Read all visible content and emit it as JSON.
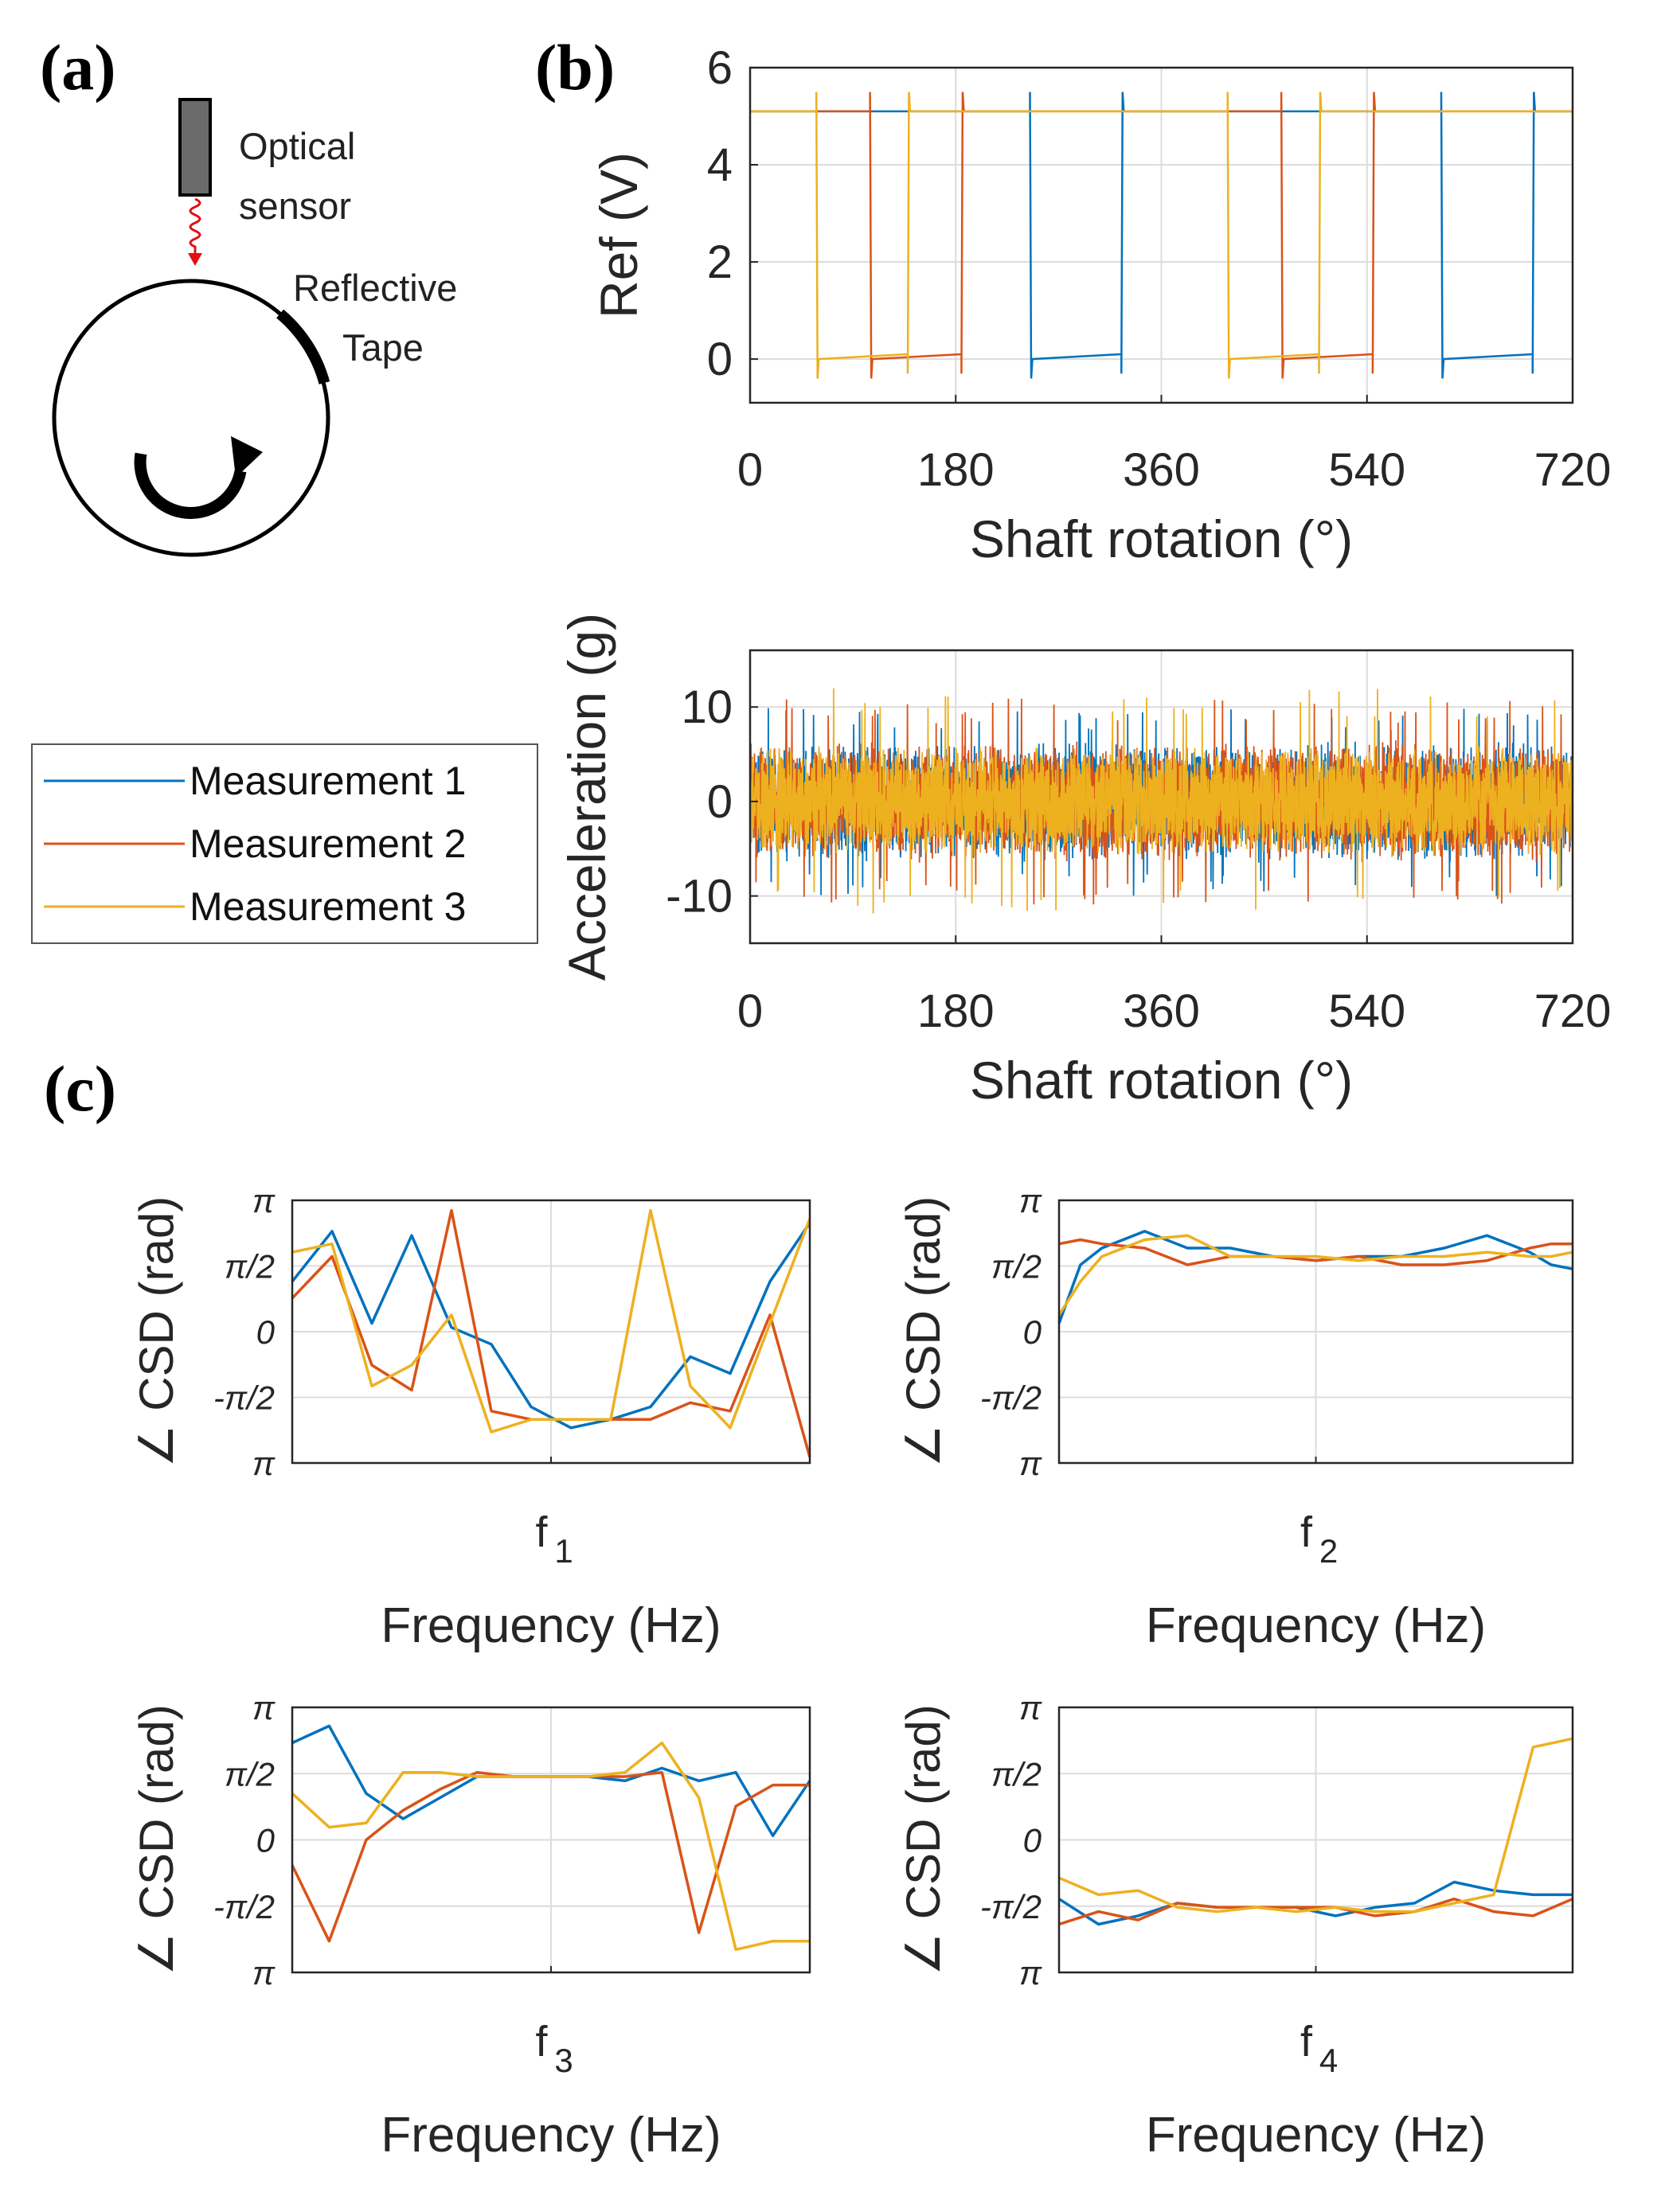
{
  "panels": {
    "a": "(a)",
    "b": "(b)",
    "c": "(c)"
  },
  "schematic": {
    "sensor_label_line1": "Optical",
    "sensor_label_line2": "sensor",
    "tape_label_line1": "Reflective",
    "tape_label_line2": "Tape"
  },
  "colors": {
    "measurement_1": "#0072BD",
    "measurement_2": "#D95319",
    "measurement_3": "#EDB120",
    "sensor_body": "#6b6b6b",
    "beam": "#e01010"
  },
  "legend": {
    "entries": [
      "Measurement 1",
      "Measurement 2",
      "Measurement 3"
    ]
  },
  "chart_data": [
    {
      "id": "ref",
      "type": "line",
      "xlabel": "Shaft rotation (°)",
      "ylabel": "Ref (V)",
      "xlim": [
        0,
        720
      ],
      "ylim": [
        -0.9,
        6
      ],
      "xticks": [
        0,
        180,
        360,
        540,
        720
      ],
      "yticks": [
        0,
        2,
        4,
        6
      ],
      "grid": true,
      "high_level": 5.1,
      "low_level": 0.0,
      "series": [
        {
          "name": "Measurement 1",
          "low_intervals": [
            [
              245,
              325
            ],
            [
              605,
              685
            ]
          ]
        },
        {
          "name": "Measurement 2",
          "low_intervals": [
            [
              105,
              185
            ],
            [
              465,
              545
            ]
          ]
        },
        {
          "name": "Measurement 3",
          "low_intervals": [
            [
              58,
              138
            ],
            [
              418,
              498
            ]
          ]
        }
      ]
    },
    {
      "id": "accel",
      "type": "line",
      "xlabel": "Shaft rotation (°)",
      "ylabel": "Acceleration (g)",
      "xlim": [
        0,
        720
      ],
      "ylim": [
        -15,
        16
      ],
      "xticks": [
        0,
        180,
        360,
        540,
        720
      ],
      "yticks": [
        -10,
        0,
        10
      ],
      "grid": true,
      "series": [
        {
          "name": "Measurement 1",
          "amplitude": 6.5,
          "peak": 10
        },
        {
          "name": "Measurement 2",
          "amplitude": 6.5,
          "peak": 11
        },
        {
          "name": "Measurement 3",
          "amplitude": 6.0,
          "peak": 12
        }
      ]
    },
    {
      "id": "csd_f1",
      "type": "line",
      "xlabel": "Frequency (Hz)",
      "xtick_label": "f",
      "xtick_sub": "1",
      "ylabel": "∠ CSD (rad)",
      "ylim": [
        -3.1416,
        3.1416
      ],
      "yticks": [
        {
          "label": "π",
          "value": 3.1416
        },
        {
          "label": "π/2",
          "value": 1.5708
        },
        {
          "label": "0",
          "value": 0
        },
        {
          "label": "-π/2",
          "value": -1.5708
        },
        {
          "label": "π",
          "value": -3.1416
        }
      ],
      "x": [
        0,
        1,
        2,
        3,
        4,
        5,
        6,
        7,
        8,
        9,
        10,
        11,
        12,
        13
      ],
      "series": [
        {
          "name": "Measurement 1",
          "values": [
            1.2,
            2.4,
            0.2,
            2.3,
            0.1,
            -0.3,
            -1.8,
            -2.3,
            -2.1,
            -1.8,
            -0.6,
            -1.0,
            1.2,
            2.6
          ]
        },
        {
          "name": "Measurement 2",
          "values": [
            0.8,
            1.8,
            -0.8,
            -1.4,
            2.9,
            -1.9,
            -2.1,
            -2.1,
            -2.1,
            -2.1,
            -1.7,
            -1.9,
            0.4,
            -3.0
          ]
        },
        {
          "name": "Measurement 3",
          "values": [
            1.9,
            2.1,
            -1.3,
            -0.8,
            0.4,
            -2.4,
            -2.1,
            -2.1,
            -2.1,
            2.9,
            -1.3,
            -2.3,
            0.2,
            2.7
          ]
        }
      ]
    },
    {
      "id": "csd_f2",
      "type": "line",
      "xlabel": "Frequency (Hz)",
      "xtick_label": "f",
      "xtick_sub": "2",
      "ylabel": "∠ CSD (rad)",
      "ylim": [
        -3.1416,
        3.1416
      ],
      "yticks": [
        {
          "label": "π",
          "value": 3.1416
        },
        {
          "label": "π/2",
          "value": 1.5708
        },
        {
          "label": "0",
          "value": 0
        },
        {
          "label": "-π/2",
          "value": -1.5708
        },
        {
          "label": "π",
          "value": -3.1416
        }
      ],
      "x": [
        0,
        0.5,
        1,
        2,
        3,
        4,
        5,
        6,
        7,
        8,
        9,
        10,
        11,
        11.5,
        12
      ],
      "series": [
        {
          "name": "Measurement 1",
          "values": [
            0.2,
            1.6,
            2.0,
            2.4,
            2.0,
            2.0,
            1.8,
            1.7,
            1.8,
            1.8,
            2.0,
            2.3,
            1.9,
            1.6,
            1.5
          ]
        },
        {
          "name": "Measurement 2",
          "values": [
            2.1,
            2.2,
            2.1,
            2.0,
            1.6,
            1.8,
            1.8,
            1.7,
            1.8,
            1.6,
            1.6,
            1.7,
            2.0,
            2.1,
            2.1
          ]
        },
        {
          "name": "Measurement 3",
          "values": [
            0.4,
            1.2,
            1.8,
            2.2,
            2.3,
            1.8,
            1.8,
            1.8,
            1.7,
            1.8,
            1.8,
            1.9,
            1.8,
            1.8,
            1.9
          ]
        }
      ]
    },
    {
      "id": "csd_f3",
      "type": "line",
      "xlabel": "Frequency (Hz)",
      "xtick_label": "f",
      "xtick_sub": "3",
      "ylabel": "∠ CSD (rad)",
      "ylim": [
        -3.1416,
        3.1416
      ],
      "yticks": [
        {
          "label": "π",
          "value": 3.1416
        },
        {
          "label": "π/2",
          "value": 1.5708
        },
        {
          "label": "0",
          "value": 0
        },
        {
          "label": "-π/2",
          "value": -1.5708
        },
        {
          "label": "π",
          "value": -3.1416
        }
      ],
      "x": [
        0,
        1,
        2,
        3,
        4,
        5,
        6,
        7,
        8,
        9,
        10,
        11,
        12,
        13,
        14
      ],
      "series": [
        {
          "name": "Measurement 1",
          "values": [
            2.3,
            2.7,
            1.1,
            0.5,
            1.0,
            1.5,
            1.5,
            1.5,
            1.5,
            1.4,
            1.7,
            1.4,
            1.6,
            0.1,
            1.4
          ]
        },
        {
          "name": "Measurement 2",
          "values": [
            -0.6,
            -2.4,
            0.0,
            0.7,
            1.2,
            1.6,
            1.5,
            1.5,
            1.5,
            1.5,
            1.6,
            -2.2,
            0.8,
            1.3,
            1.3
          ]
        },
        {
          "name": "Measurement 3",
          "values": [
            1.1,
            0.3,
            0.4,
            1.6,
            1.6,
            1.5,
            1.5,
            1.5,
            1.5,
            1.6,
            2.3,
            1.0,
            -2.6,
            -2.4,
            -2.4
          ]
        }
      ]
    },
    {
      "id": "csd_f4",
      "type": "line",
      "xlabel": "Frequency (Hz)",
      "xtick_label": "f",
      "xtick_sub": "4",
      "ylabel": "∠ CSD (rad)",
      "ylim": [
        -3.1416,
        3.1416
      ],
      "yticks": [
        {
          "label": "π",
          "value": 3.1416
        },
        {
          "label": "π/2",
          "value": 1.5708
        },
        {
          "label": "0",
          "value": 0
        },
        {
          "label": "-π/2",
          "value": -1.5708
        },
        {
          "label": "π",
          "value": -3.1416
        }
      ],
      "x": [
        0,
        1,
        2,
        3,
        4,
        5,
        6,
        7,
        8,
        9,
        10,
        11,
        12,
        13
      ],
      "series": [
        {
          "name": "Measurement 1",
          "values": [
            -1.4,
            -2.0,
            -1.8,
            -1.5,
            -1.6,
            -1.6,
            -1.6,
            -1.8,
            -1.6,
            -1.5,
            -1.0,
            -1.2,
            -1.3,
            -1.3
          ]
        },
        {
          "name": "Measurement 2",
          "values": [
            -2.0,
            -1.7,
            -1.9,
            -1.5,
            -1.6,
            -1.6,
            -1.6,
            -1.6,
            -1.8,
            -1.7,
            -1.4,
            -1.7,
            -1.8,
            -1.4
          ]
        },
        {
          "name": "Measurement 3",
          "values": [
            -0.9,
            -1.3,
            -1.2,
            -1.6,
            -1.7,
            -1.6,
            -1.7,
            -1.6,
            -1.7,
            -1.7,
            -1.5,
            -1.3,
            2.2,
            2.4
          ]
        }
      ]
    }
  ]
}
